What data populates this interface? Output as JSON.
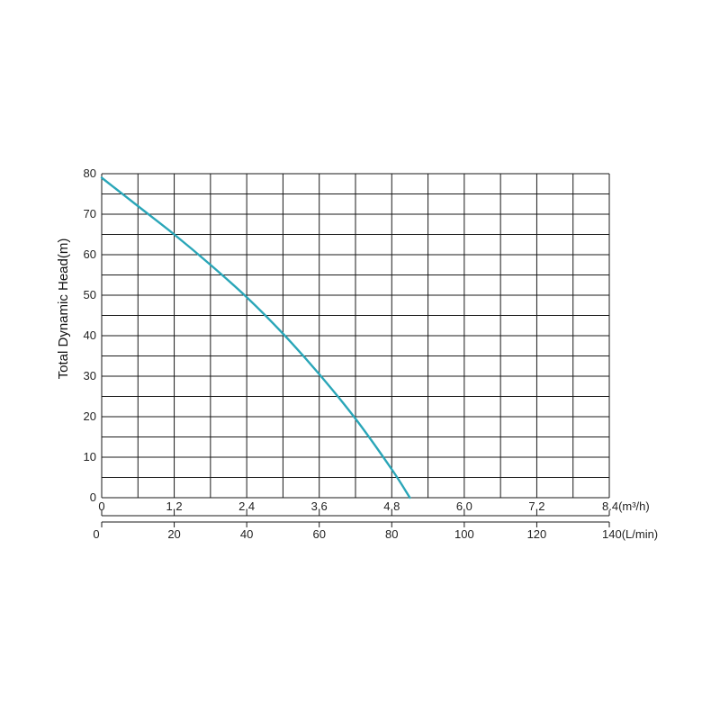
{
  "chart_data": {
    "type": "line",
    "title": "",
    "ylabel": "Total Dynamic Head(m)",
    "ylim": [
      0,
      80
    ],
    "y_ticks": [
      "0",
      "10",
      "20",
      "30",
      "40",
      "50",
      "60",
      "70",
      "80"
    ],
    "x_axis_primary": {
      "unit_label": "(m³/h)",
      "range": [
        0,
        8.4
      ],
      "ticks": [
        "0",
        "1.2",
        "2.4",
        "3.6",
        "4.8",
        "6.0",
        "7.2",
        "8.4"
      ]
    },
    "x_axis_secondary": {
      "unit_label": "(L/min)",
      "range": [
        0,
        140
      ],
      "ticks": [
        "0",
        "20",
        "40",
        "60",
        "80",
        "100",
        "120",
        "140"
      ]
    },
    "grid": true,
    "series": [
      {
        "color": "#2aa6b8",
        "x": [
          0,
          0.6,
          1.2,
          1.8,
          2.4,
          3.0,
          3.6,
          4.2,
          4.8,
          5.1
        ],
        "y": [
          79,
          72,
          65,
          57.5,
          49.5,
          40.5,
          30.5,
          19.5,
          7,
          0
        ]
      }
    ]
  }
}
